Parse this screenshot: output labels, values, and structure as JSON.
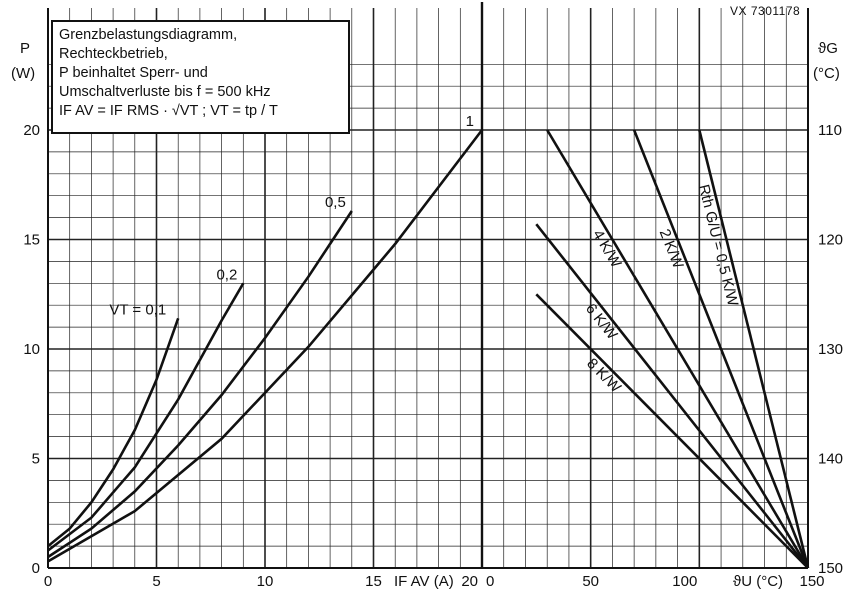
{
  "header": {
    "code": "VX 7301178",
    "y_left_axis_label": [
      "P",
      "(W)"
    ],
    "y_right_axis_label": [
      "ϑG",
      "(°C)"
    ],
    "x_left_axis_label": "IF AV (A)",
    "x_right_axis_label": "ϑU (°C)"
  },
  "legend": {
    "lines": [
      "Grenzbelastungsdiagramm,",
      "Rechteckbetrieb,",
      "P beinhaltet Sperr- und",
      "Umschaltverluste bis  f = 500 kHz",
      "IF AV = IF RMS · √VT ;  VT = tp / T"
    ]
  },
  "chart_data": {
    "type": "line",
    "title": "Grenzbelastungsdiagramm, Rechteckbetrieb",
    "left_panel": {
      "xlabel": "IF AV (A)",
      "ylabel": "P (W)",
      "xlim": [
        0,
        20
      ],
      "ylim": [
        0,
        20
      ],
      "xticks": [
        0,
        5,
        10,
        15,
        20
      ],
      "yticks": [
        0,
        5,
        10,
        15,
        20
      ],
      "series": [
        {
          "name": "VT = 0,1",
          "label": "VT = 0,1",
          "points": [
            [
              0,
              1.0
            ],
            [
              1,
              1.8
            ],
            [
              2,
              3.0
            ],
            [
              3,
              4.5
            ],
            [
              4,
              6.3
            ],
            [
              5,
              8.6
            ],
            [
              6,
              11.4
            ]
          ]
        },
        {
          "name": "0,2",
          "label": "0,2",
          "points": [
            [
              0,
              0.8
            ],
            [
              2,
              2.3
            ],
            [
              4,
              4.6
            ],
            [
              6,
              7.7
            ],
            [
              8,
              11.3
            ],
            [
              9,
              13.0
            ]
          ]
        },
        {
          "name": "0,5",
          "label": "0,5",
          "points": [
            [
              0,
              0.5
            ],
            [
              2,
              1.8
            ],
            [
              4,
              3.5
            ],
            [
              6,
              5.6
            ],
            [
              8,
              7.9
            ],
            [
              10,
              10.5
            ],
            [
              12,
              13.3
            ],
            [
              14,
              16.3
            ]
          ]
        },
        {
          "name": "1",
          "label": "1",
          "points": [
            [
              0,
              0.3
            ],
            [
              4,
              2.6
            ],
            [
              8,
              5.9
            ],
            [
              12,
              10.1
            ],
            [
              16,
              14.8
            ],
            [
              20,
              20.0
            ]
          ]
        }
      ]
    },
    "right_panel": {
      "xlabel": "ϑU (°C)",
      "ylabel": "ϑG (°C)",
      "xlim": [
        0,
        150
      ],
      "ylim_temperature": [
        150,
        110
      ],
      "xticks": [
        0,
        50,
        100,
        150
      ],
      "yticks_right": [
        110,
        120,
        130,
        140,
        150
      ],
      "series": [
        {
          "name": "Rth G/U = 0,5 K/W",
          "label": "Rth G/U = 0,5 K/W",
          "points": [
            [
              100,
              20.0
            ],
            [
              150,
              0
            ]
          ]
        },
        {
          "name": "2 K/W",
          "label": "2 K/W",
          "points": [
            [
              70,
              20.0
            ],
            [
              150,
              0
            ]
          ]
        },
        {
          "name": "4 K/W",
          "label": "4 K/W",
          "points": [
            [
              30,
              20.0
            ],
            [
              150,
              0
            ]
          ]
        },
        {
          "name": "6 K/W",
          "label": "6 K/W",
          "points": [
            [
              25,
              15.7
            ],
            [
              150,
              0
            ]
          ]
        },
        {
          "name": "8 K/W",
          "label": "8 K/W",
          "points": [
            [
              25,
              12.5
            ],
            [
              150,
              0
            ]
          ]
        }
      ]
    },
    "grid": true
  },
  "colors": {
    "ink": "#111111",
    "grid": "#222222",
    "background": "#ffffff"
  }
}
